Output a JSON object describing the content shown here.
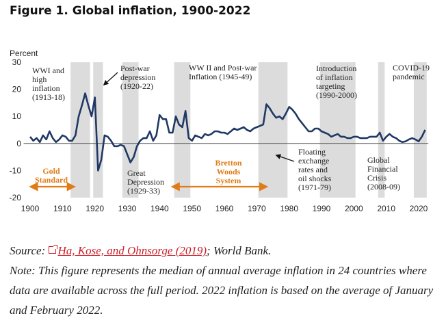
{
  "figure_title": "Figure 1. Global inflation, 1900-2022",
  "caption": {
    "source_prefix": "Source: ",
    "source_link": "Ha, Kose, and Ohnsorge (2019)",
    "source_suffix": "; World Bank.",
    "note": "Note: This figure represents the median of annual average inflation in 24 countries where data are available across the full period. 2022 inflation is based on the average of January and February 2022."
  },
  "chart_data": {
    "type": "line",
    "title": "",
    "xlabel": "",
    "ylabel": "Percent",
    "xlim": [
      1900,
      2022
    ],
    "ylim": [
      -20,
      30
    ],
    "x_ticks": [
      1900,
      1910,
      1920,
      1930,
      1940,
      1950,
      1960,
      1970,
      1980,
      1990,
      2000,
      2010,
      2020
    ],
    "y_ticks": [
      30,
      20,
      10,
      0,
      -10,
      -20
    ],
    "grid": false,
    "line_color": "#1f3864",
    "shade_color": "#dcdcdc",
    "accent_color": "#e07b16",
    "shaded_periods": [
      [
        1913,
        1918
      ],
      [
        1920,
        1922
      ],
      [
        1929,
        1933
      ],
      [
        1945,
        1949
      ],
      [
        1971,
        1979
      ],
      [
        1990,
        2000
      ],
      [
        2008,
        2009
      ],
      [
        2019,
        2022
      ]
    ],
    "series": [
      {
        "x": [
          1900,
          1901,
          1902,
          1903,
          1904,
          1905,
          1906,
          1907,
          1908,
          1909,
          1910,
          1911,
          1912,
          1913,
          1914,
          1915,
          1916,
          1917,
          1918,
          1919,
          1920,
          1921,
          1922,
          1923,
          1924,
          1925,
          1926,
          1927,
          1928,
          1929,
          1930,
          1931,
          1932,
          1933,
          1934,
          1935,
          1936,
          1937,
          1938,
          1939,
          1940,
          1941,
          1942,
          1943,
          1944,
          1945,
          1946,
          1947,
          1948,
          1949,
          1950,
          1951,
          1952,
          1953,
          1954,
          1955,
          1956,
          1957,
          1958,
          1959,
          1960,
          1961,
          1962,
          1963,
          1964,
          1965,
          1966,
          1967,
          1968,
          1969,
          1970,
          1971,
          1972,
          1973,
          1974,
          1975,
          1976,
          1977,
          1978,
          1979,
          1980,
          1981,
          1982,
          1983,
          1984,
          1985,
          1986,
          1987,
          1988,
          1989,
          1990,
          1991,
          1992,
          1993,
          1994,
          1995,
          1996,
          1997,
          1998,
          1999,
          2000,
          2001,
          2002,
          2003,
          2004,
          2005,
          2006,
          2007,
          2008,
          2009,
          2010,
          2011,
          2012,
          2013,
          2014,
          2015,
          2016,
          2017,
          2018,
          2019,
          2020,
          2021,
          2022
        ],
        "values": [
          2.5,
          1.0,
          2.0,
          0.5,
          3.0,
          1.5,
          4.5,
          2.0,
          0.5,
          1.5,
          3.0,
          2.5,
          1.0,
          1.0,
          3.0,
          10.0,
          14.0,
          18.5,
          14.0,
          10.0,
          17.0,
          -10.0,
          -6.0,
          3.0,
          2.5,
          1.0,
          -1.0,
          -1.0,
          -0.5,
          -1.0,
          -4.0,
          -7.0,
          -5.0,
          -1.0,
          1.0,
          2.0,
          2.0,
          4.5,
          1.0,
          3.0,
          10.5,
          9.0,
          9.0,
          4.0,
          4.0,
          10.0,
          7.0,
          6.0,
          12.0,
          2.0,
          1.0,
          3.0,
          2.5,
          2.0,
          3.5,
          3.0,
          3.5,
          4.5,
          4.5,
          4.0,
          4.0,
          3.5,
          4.5,
          5.5,
          5.0,
          5.5,
          6.0,
          5.0,
          4.5,
          5.5,
          6.0,
          6.5,
          7.0,
          14.5,
          13.0,
          11.0,
          9.5,
          10.0,
          9.0,
          11.0,
          13.5,
          12.5,
          11.0,
          9.0,
          7.5,
          6.0,
          4.5,
          4.5,
          5.5,
          5.5,
          4.5,
          4.0,
          3.5,
          2.5,
          3.0,
          3.5,
          2.5,
          2.5,
          2.0,
          2.0,
          2.5,
          2.5,
          2.0,
          2.0,
          2.0,
          2.5,
          2.5,
          2.5,
          4.0,
          1.0,
          2.5,
          3.5,
          2.5,
          2.0,
          1.0,
          0.5,
          0.8,
          1.5,
          2.0,
          1.5,
          0.8,
          2.5,
          5.0
        ]
      }
    ],
    "annotations": [
      {
        "lines": [
          "WWI and",
          "high",
          "inflation",
          "(1913-18)"
        ],
        "style": "plain"
      },
      {
        "lines": [
          "Post-war",
          "depression",
          "(1920-22)"
        ],
        "style": "plain"
      },
      {
        "lines": [
          "WW II and Post-war",
          "Inflation (1945-49)"
        ],
        "style": "plain"
      },
      {
        "lines": [
          "Introduction",
          "of inflation",
          "targeting",
          "(1990-2000)"
        ],
        "style": "plain"
      },
      {
        "lines": [
          "COVID-19",
          "pandemic"
        ],
        "style": "plain"
      },
      {
        "lines": [
          "Gold",
          "Standard"
        ],
        "style": "orange"
      },
      {
        "lines": [
          "Great",
          "Depression",
          "(1929-33)"
        ],
        "style": "plain"
      },
      {
        "lines": [
          "Bretton",
          "Woods",
          "System"
        ],
        "style": "orange"
      },
      {
        "lines": [
          "Floating",
          "exchange",
          "rates and",
          "oil shocks",
          "(1971-79)"
        ],
        "style": "plain"
      },
      {
        "lines": [
          "Global",
          "Financial",
          "Crisis",
          "(2008-09)"
        ],
        "style": "plain"
      }
    ]
  }
}
